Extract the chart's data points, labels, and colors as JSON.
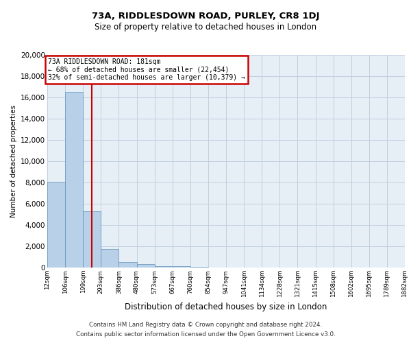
{
  "title": "73A, RIDDLESDOWN ROAD, PURLEY, CR8 1DJ",
  "subtitle": "Size of property relative to detached houses in London",
  "xlabel": "Distribution of detached houses by size in London",
  "ylabel": "Number of detached properties",
  "bar_values": [
    8050,
    16500,
    5300,
    1750,
    500,
    300,
    150,
    100,
    50,
    30,
    15,
    8,
    5,
    3,
    2,
    1,
    1,
    1,
    1,
    1
  ],
  "bar_labels": [
    "12sqm",
    "106sqm",
    "199sqm",
    "293sqm",
    "386sqm",
    "480sqm",
    "573sqm",
    "667sqm",
    "760sqm",
    "854sqm",
    "947sqm",
    "1041sqm",
    "1134sqm",
    "1228sqm",
    "1321sqm",
    "1415sqm",
    "1508sqm",
    "1602sqm",
    "1695sqm",
    "1789sqm",
    "1882sqm"
  ],
  "bar_color": "#b8d0e8",
  "bar_edge_color": "#6090b8",
  "vline_x": 2.0,
  "vline_color": "#cc0000",
  "ylim": [
    0,
    20000
  ],
  "yticks": [
    0,
    2000,
    4000,
    6000,
    8000,
    10000,
    12000,
    14000,
    16000,
    18000,
    20000
  ],
  "annotation_title": "73A RIDDLESDOWN ROAD: 181sqm",
  "annotation_line1": "← 68% of detached houses are smaller (22,454)",
  "annotation_line2": "32% of semi-detached houses are larger (10,379) →",
  "annotation_box_color": "#cc0000",
  "grid_color": "#c0d0e0",
  "bg_color": "#e6eef6",
  "footer_line1": "Contains HM Land Registry data © Crown copyright and database right 2024.",
  "footer_line2": "Contains public sector information licensed under the Open Government Licence v3.0."
}
